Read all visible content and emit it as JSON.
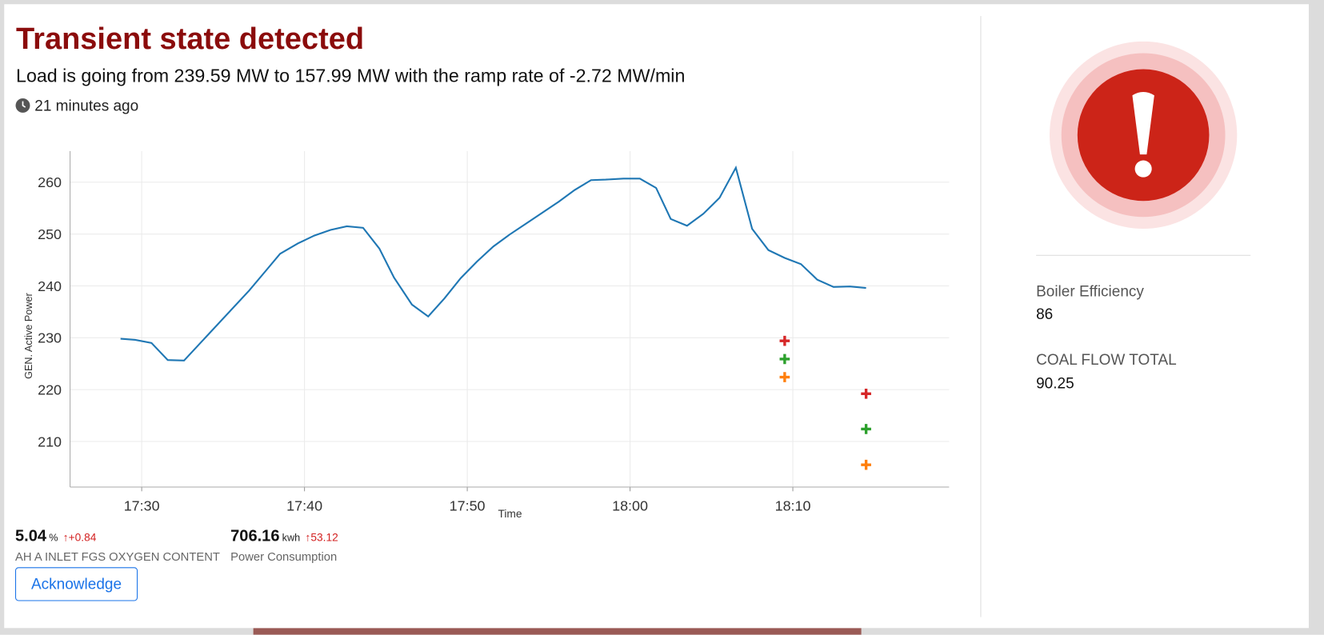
{
  "header": {
    "title": "Transient state detected",
    "subtitle": "Load is going from 239.59 MW to 157.99 MW with the ramp rate of -2.72 MW/min",
    "time_ago": "21 minutes ago"
  },
  "chart_data": {
    "type": "line",
    "ylabel": "GEN. Active Power",
    "xlabel": "Time",
    "xlim": [
      1045.6,
      1099.6
    ],
    "ylim": [
      201.2,
      266
    ],
    "xticks": [
      {
        "value": 1050,
        "label": "17:30"
      },
      {
        "value": 1060,
        "label": "17:40"
      },
      {
        "value": 1070,
        "label": "17:50"
      },
      {
        "value": 1080,
        "label": "18:00"
      },
      {
        "value": 1090,
        "label": "18:10"
      }
    ],
    "yticks": [
      210,
      220,
      230,
      240,
      250,
      260
    ],
    "grid": true,
    "series": [
      {
        "color": "#1f77b4",
        "marker": "line",
        "x": [
          1048.7,
          1049.6,
          1050.6,
          1051.6,
          1052.6,
          1056.6,
          1057.7,
          1058.5,
          1059.6,
          1060.6,
          1061.6,
          1062.6,
          1063.6,
          1064.6,
          1065.5,
          1066.6,
          1067.6,
          1068.6,
          1069.6,
          1070.6,
          1071.6,
          1072.6,
          1073.6,
          1074.6,
          1075.6,
          1076.6,
          1077.6,
          1078.5,
          1079.6,
          1080.6,
          1081.6,
          1082.5,
          1083.5,
          1084.5,
          1085.5,
          1086.5,
          1087.5,
          1088.5,
          1089.5,
          1090.5,
          1091.5,
          1092.5,
          1093.5,
          1094.5
        ],
        "values": [
          229.8,
          229.6,
          229,
          225.7,
          225.6,
          239.1,
          243.2,
          246.2,
          248.2,
          249.7,
          250.8,
          251.5,
          251.2,
          247.2,
          241.6,
          236.4,
          234.1,
          237.6,
          241.5,
          244.7,
          247.6,
          249.9,
          252,
          254.1,
          256.2,
          258.5,
          260.4,
          260.5,
          260.7,
          260.7,
          258.9,
          252.9,
          251.6,
          253.9,
          257,
          262.8,
          251,
          246.9,
          245.4,
          244.2,
          241.2,
          239.8,
          239.9,
          239.6
        ]
      },
      {
        "color": "#d62728",
        "marker": "plus",
        "x": [
          1089.5,
          1094.5
        ],
        "values": [
          229.4,
          219.2
        ]
      },
      {
        "color": "#2ca02c",
        "marker": "plus",
        "x": [
          1089.5,
          1094.5
        ],
        "values": [
          225.9,
          212.4
        ]
      },
      {
        "color": "#ff7f0e",
        "marker": "plus",
        "x": [
          1089.5,
          1094.5
        ],
        "values": [
          222.4,
          205.5
        ]
      }
    ]
  },
  "kpis": [
    {
      "value": "5.04",
      "unit": "%",
      "change": "+0.84",
      "label": "AH A INLET FGS OXYGEN CONTENT"
    },
    {
      "value": "706.16",
      "unit": "kwh",
      "change": "53.12",
      "label": "Power Consumption"
    }
  ],
  "button": "Acknowledge",
  "metrics": [
    {
      "label": "Boiler Efficiency",
      "value": "86"
    },
    {
      "label": "COAL FLOW TOTAL",
      "value": "90.25"
    }
  ]
}
